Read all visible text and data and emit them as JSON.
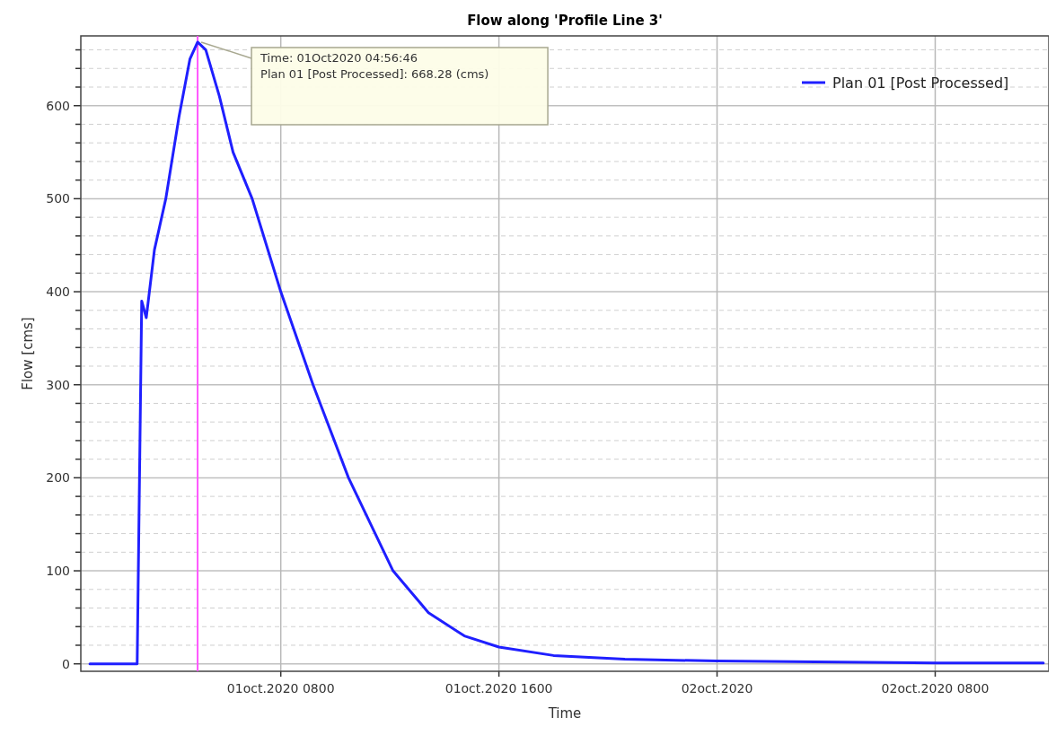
{
  "chart_data": {
    "type": "line",
    "title": "Flow along 'Profile Line 3'",
    "xlabel": "Time",
    "ylabel": "Flow [cms]",
    "x": [
      "2020-10-01T01:00",
      "2020-10-01T02:44",
      "2020-10-01T02:54",
      "2020-10-01T03:04",
      "2020-10-01T03:22",
      "2020-10-01T03:47",
      "2020-10-01T04:16",
      "2020-10-01T04:40",
      "2020-10-01T04:57",
      "2020-10-01T05:15",
      "2020-10-01T05:45",
      "2020-10-01T06:15",
      "2020-10-01T06:57",
      "2020-10-01T08:00",
      "2020-10-01T09:11",
      "2020-10-01T10:29",
      "2020-10-01T12:07",
      "2020-10-01T13:25",
      "2020-10-01T14:44",
      "2020-10-01T16:00",
      "2020-10-01T18:00",
      "2020-10-01T20:37",
      "2020-10-02T00:00",
      "2020-10-02T08:00",
      "2020-10-02T11:58"
    ],
    "series": [
      {
        "name": "Plan 01 [Post Processed]",
        "color": "#1f1fff",
        "values": [
          0,
          0,
          390,
          372,
          445,
          500,
          588,
          650,
          668.28,
          660,
          610,
          550,
          500,
          400,
          300,
          200,
          100,
          55,
          30,
          18,
          9,
          5,
          3,
          1,
          1
        ]
      }
    ],
    "xlim": [
      "2020-10-01T00:40",
      "2020-10-02T12:10"
    ],
    "xticks": [
      {
        "value": "2020-10-01T08:00",
        "label": "01oct.2020 0800"
      },
      {
        "value": "2020-10-01T16:00",
        "label": "01oct.2020 1600"
      },
      {
        "value": "2020-10-02T00:00",
        "label": "02oct.2020"
      },
      {
        "value": "2020-10-02T08:00",
        "label": "02oct.2020 0800"
      }
    ],
    "ylim": [
      -8,
      675
    ],
    "yticks": [
      0,
      {
        "value": 20,
        "label": null
      },
      {
        "value": 40,
        "label": null
      },
      {
        "value": 60,
        "label": null
      },
      {
        "value": 80,
        "label": null
      },
      100,
      {
        "value": 120,
        "label": null
      },
      {
        "value": 140,
        "label": null
      },
      {
        "value": 160,
        "label": null
      },
      {
        "value": 180,
        "label": null
      },
      200,
      {
        "value": 220,
        "label": null
      },
      {
        "value": 240,
        "label": null
      },
      {
        "value": 260,
        "label": null
      },
      {
        "value": 280,
        "label": null
      },
      300,
      {
        "value": 320,
        "label": null
      },
      {
        "value": 340,
        "label": null
      },
      {
        "value": 360,
        "label": null
      },
      {
        "value": 380,
        "label": null
      },
      400,
      {
        "value": 420,
        "label": null
      },
      {
        "value": 440,
        "label": null
      },
      {
        "value": 460,
        "label": null
      },
      {
        "value": 480,
        "label": null
      },
      500,
      {
        "value": 520,
        "label": null
      },
      {
        "value": 540,
        "label": null
      },
      {
        "value": 560,
        "label": null
      },
      {
        "value": 580,
        "label": null
      },
      600,
      {
        "value": 620,
        "label": null
      },
      {
        "value": 640,
        "label": null
      },
      {
        "value": 660,
        "label": null
      }
    ],
    "ref_lines": [
      {
        "axis": "x",
        "value": "2020-10-01T04:57",
        "color": "#ff55ff"
      }
    ],
    "annotations": [
      {
        "text": "Time: 01Oct2020 04:56:46\nPlan 01 [Post Processed]: 668.28 (cms)",
        "x": "2020-10-01T04:57",
        "y": 668.28
      }
    ],
    "grid": true,
    "legend": "top right",
    "line_style": "solid",
    "marker": "none"
  }
}
